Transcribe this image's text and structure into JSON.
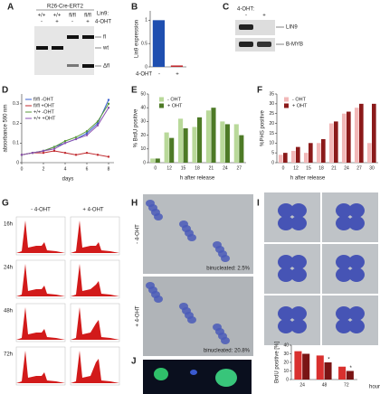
{
  "figure": {
    "labels": [
      "A",
      "B",
      "C",
      "D",
      "E",
      "F",
      "G",
      "H",
      "I",
      "J"
    ],
    "A": {
      "construct": "R26-Cre-ERT2",
      "genotype_label": "Lin9:",
      "genotypes": [
        "+/+",
        "+/+",
        "fl/fl",
        "fl/fl"
      ],
      "treatment": [
        "-",
        "+",
        "-",
        "+"
      ],
      "treatment_label": "4-OHT",
      "bands": [
        "fl",
        "wt",
        "Δfl"
      ]
    },
    "C": {
      "treatment_label": "4-OHT:",
      "treatment": [
        "-",
        "+"
      ],
      "bands": [
        "LIN9",
        "B-MYB"
      ]
    },
    "G": {
      "columns": [
        "- 4-OHT",
        "+ 4-OHT"
      ],
      "rows": [
        "16h",
        "24h",
        "48h",
        "72h"
      ]
    },
    "H": {
      "rows": [
        "- 4-OHT",
        "+ 4-OHT"
      ],
      "captions": [
        "binucleated: 2.5%",
        "binucleated: 20.8%"
      ]
    }
  },
  "chart_data": [
    {
      "type": "bar",
      "ylabel": "Lin9 expression",
      "xlabel": "4-OHT",
      "categories": [
        "-",
        "+"
      ],
      "values": [
        1.0,
        0.03
      ],
      "colors": [
        "#1f4fb0",
        "#c0282d"
      ],
      "ylim": [
        0,
        1.2
      ],
      "yticks": [
        0,
        0.5,
        1
      ]
    },
    {
      "type": "line",
      "ylabel": "absorbance 590 nm",
      "xlabel": "days",
      "x": [
        0,
        1,
        2,
        3,
        4,
        5,
        6,
        7,
        8
      ],
      "xlim": [
        0,
        8.5
      ],
      "xticks": [
        0,
        2,
        4,
        6,
        8
      ],
      "ylim": [
        0,
        0.35
      ],
      "yticks": [
        0,
        0.1,
        0.2,
        0.3
      ],
      "series": [
        {
          "name": "fl/fl -OHT",
          "color": "#3a5fcd",
          "values": [
            0.04,
            0.05,
            0.06,
            0.08,
            0.1,
            0.12,
            0.15,
            0.2,
            0.32
          ]
        },
        {
          "name": "fl/fl +OHT",
          "color": "#c0282d",
          "values": [
            0.04,
            0.05,
            0.05,
            0.06,
            0.05,
            0.04,
            0.05,
            0.04,
            0.03
          ]
        },
        {
          "name": "+/+ -OHT",
          "color": "#5a9a3a",
          "values": [
            0.04,
            0.05,
            0.06,
            0.08,
            0.11,
            0.13,
            0.16,
            0.21,
            0.3
          ]
        },
        {
          "name": "+/+ +OHT",
          "color": "#8a4fb0",
          "values": [
            0.04,
            0.05,
            0.06,
            0.07,
            0.1,
            0.12,
            0.14,
            0.19,
            0.28
          ]
        }
      ]
    },
    {
      "type": "bar",
      "ylabel": "% BrdU positive",
      "xlabel": "h after release",
      "categories": [
        "0",
        "12",
        "15",
        "18",
        "21",
        "24",
        "27"
      ],
      "ylim": [
        0,
        50
      ],
      "yticks": [
        0,
        10,
        20,
        30,
        40,
        50
      ],
      "series": [
        {
          "name": "- OHT",
          "color": "#b9d99a",
          "values": [
            3,
            22,
            32,
            26,
            38,
            30,
            28
          ]
        },
        {
          "name": "+ OHT",
          "color": "#4d7a26",
          "values": [
            3,
            18,
            25,
            33,
            40,
            28,
            20
          ]
        }
      ]
    },
    {
      "type": "bar",
      "ylabel": "%PHS positive",
      "xlabel": "h after release",
      "categories": [
        "0",
        "12",
        "15",
        "18",
        "21",
        "24",
        "27",
        "30"
      ],
      "ylim": [
        0,
        35
      ],
      "yticks": [
        0,
        5,
        10,
        15,
        20,
        25,
        30,
        35
      ],
      "series": [
        {
          "name": "- OHT",
          "color": "#f2b8b8",
          "values": [
            4,
            6,
            5,
            10,
            20,
            25,
            28,
            10
          ]
        },
        {
          "name": "+ OHT",
          "color": "#8b1a1a",
          "values": [
            5,
            8,
            10,
            12,
            21,
            26,
            30,
            30
          ]
        }
      ]
    },
    {
      "type": "bar",
      "ylabel": "BrdU positive [%]",
      "xlabel": "hours",
      "categories": [
        "24",
        "48",
        "72"
      ],
      "ylim": [
        0,
        40
      ],
      "yticks": [
        0,
        10,
        20,
        30,
        40
      ],
      "annotations": [
        "*",
        "*"
      ],
      "series": [
        {
          "color": "#d9302e",
          "values": [
            33,
            28,
            15
          ]
        },
        {
          "color": "#7a1414",
          "values": [
            30,
            20,
            10
          ]
        }
      ]
    }
  ]
}
